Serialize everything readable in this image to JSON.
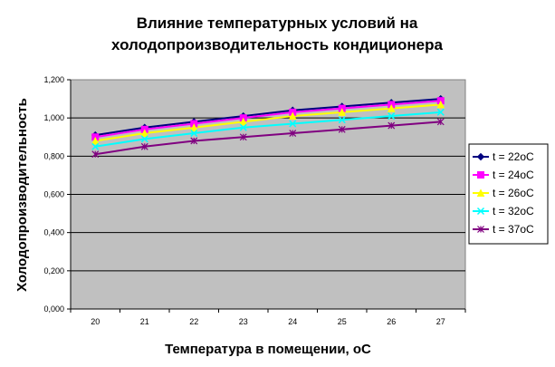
{
  "chart_data": {
    "type": "line",
    "title_line1": "Влияние температурных условий на",
    "title_line2": "холодопроизводительность кондиционера",
    "xlabel": "Температура в помещении, оС",
    "ylabel": "Холодопроизводительность",
    "categories": [
      "20",
      "21",
      "22",
      "23",
      "24",
      "25",
      "26",
      "27"
    ],
    "y_ticks": [
      "0,000",
      "0,200",
      "0,400",
      "0,600",
      "0,800",
      "1,000",
      "1,200"
    ],
    "ylim": [
      0,
      1.2
    ],
    "plot_background": "#c0c0c0",
    "grid": "horizontal",
    "legend_position": "right",
    "series": [
      {
        "name": "t = 22oC",
        "color": "#000080",
        "marker": "diamond",
        "values": [
          0.91,
          0.95,
          0.98,
          1.01,
          1.04,
          1.06,
          1.08,
          1.1
        ]
      },
      {
        "name": "t = 24oC",
        "color": "#ff00ff",
        "marker": "square",
        "values": [
          0.9,
          0.94,
          0.97,
          1.0,
          1.03,
          1.05,
          1.07,
          1.09
        ]
      },
      {
        "name": "t = 26oC",
        "color": "#ffff00",
        "marker": "triangle",
        "values": [
          0.88,
          0.92,
          0.95,
          0.98,
          1.01,
          1.03,
          1.05,
          1.07
        ]
      },
      {
        "name": "t = 32oC",
        "color": "#00ffff",
        "marker": "x",
        "values": [
          0.85,
          0.89,
          0.92,
          0.95,
          0.97,
          0.99,
          1.01,
          1.03
        ]
      },
      {
        "name": "t = 37oC",
        "color": "#800080",
        "marker": "star",
        "values": [
          0.81,
          0.85,
          0.88,
          0.9,
          0.92,
          0.94,
          0.96,
          0.98
        ]
      }
    ]
  }
}
